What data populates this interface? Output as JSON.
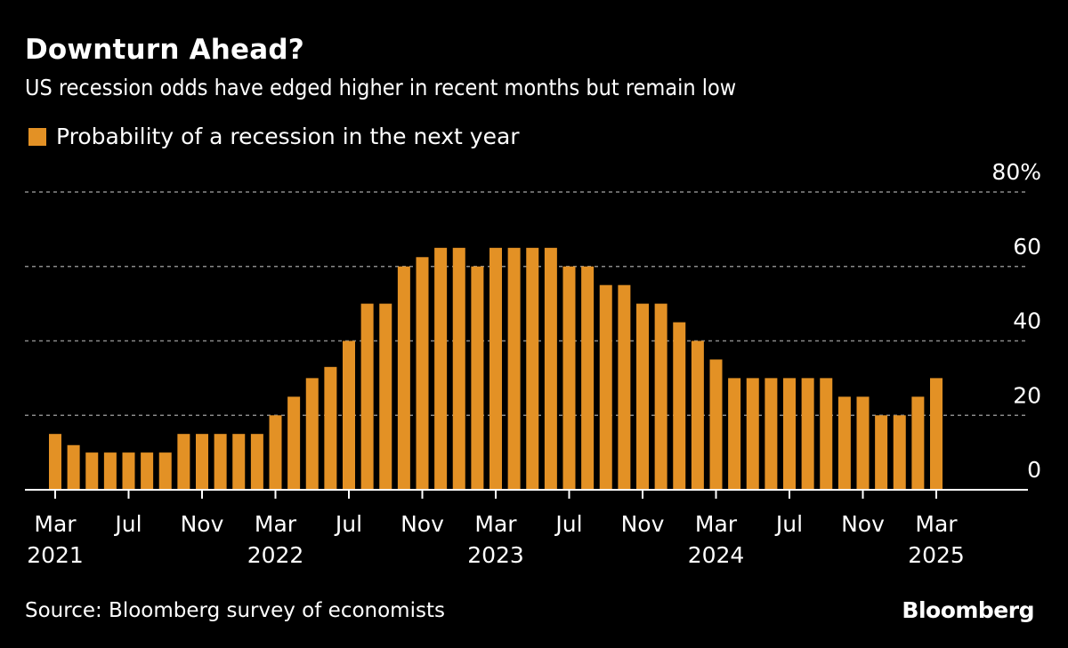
{
  "header": {
    "title": "Downturn Ahead?",
    "subtitle": "US recession odds have edged higher in recent months but remain low"
  },
  "legend": {
    "label": "Probability of a recession in the next year",
    "color": "#e39125"
  },
  "footer": {
    "source": "Source: Bloomberg survey of economists",
    "brand": "Bloomberg"
  },
  "chart_data": {
    "type": "bar",
    "title": "Downturn Ahead?",
    "subtitle": "US recession odds have edged higher in recent months but remain low",
    "xlabel": "",
    "ylabel": "",
    "ylim": [
      0,
      80
    ],
    "yticks": [
      0,
      20,
      40,
      60,
      80
    ],
    "ytick_labels": [
      "0",
      "20",
      "40",
      "60",
      "80%"
    ],
    "grid": true,
    "legend_position": "top-left",
    "series": [
      {
        "name": "Probability of a recession in the next year",
        "color": "#e39125",
        "values": [
          15,
          12,
          10,
          10,
          10,
          10,
          10,
          15,
          15,
          15,
          15,
          15,
          20,
          25,
          30,
          33,
          40,
          50,
          50,
          60,
          62.5,
          65,
          65,
          60,
          65,
          65,
          65,
          65,
          60,
          60,
          55,
          55,
          50,
          50,
          45,
          40,
          35,
          30,
          30,
          30,
          30,
          30,
          30,
          25,
          25,
          20,
          20,
          25,
          30
        ]
      }
    ],
    "categories": [
      "Mar 2021",
      "Apr 2021",
      "May 2021",
      "Jun 2021",
      "Jul 2021",
      "Aug 2021",
      "Sep 2021",
      "Oct 2021",
      "Nov 2021",
      "Dec 2021",
      "Jan 2022",
      "Feb 2022",
      "Mar 2022",
      "Apr 2022",
      "May 2022",
      "Jun 2022",
      "Jul 2022",
      "Aug 2022",
      "Sep 2022",
      "Oct 2022",
      "Nov 2022",
      "Dec 2022",
      "Jan 2023",
      "Feb 2023",
      "Mar 2023",
      "Apr 2023",
      "May 2023",
      "Jun 2023",
      "Jul 2023",
      "Aug 2023",
      "Sep 2023",
      "Oct 2023",
      "Nov 2023",
      "Dec 2023",
      "Jan 2024",
      "Feb 2024",
      "Mar 2024",
      "Apr 2024",
      "May 2024",
      "Jun 2024",
      "Jul 2024",
      "Aug 2024",
      "Sep 2024",
      "Oct 2024",
      "Nov 2024",
      "Dec 2024",
      "Jan 2025",
      "Feb 2025",
      "Mar 2025"
    ],
    "xticks": [
      {
        "index": 0,
        "month": "Mar",
        "year": "2021"
      },
      {
        "index": 4,
        "month": "Jul",
        "year": ""
      },
      {
        "index": 8,
        "month": "Nov",
        "year": ""
      },
      {
        "index": 12,
        "month": "Mar",
        "year": "2022"
      },
      {
        "index": 16,
        "month": "Jul",
        "year": ""
      },
      {
        "index": 20,
        "month": "Nov",
        "year": ""
      },
      {
        "index": 24,
        "month": "Mar",
        "year": "2023"
      },
      {
        "index": 28,
        "month": "Jul",
        "year": ""
      },
      {
        "index": 32,
        "month": "Nov",
        "year": ""
      },
      {
        "index": 36,
        "month": "Mar",
        "year": "2024"
      },
      {
        "index": 40,
        "month": "Jul",
        "year": ""
      },
      {
        "index": 44,
        "month": "Nov",
        "year": ""
      },
      {
        "index": 48,
        "month": "Mar",
        "year": "2025"
      }
    ]
  }
}
